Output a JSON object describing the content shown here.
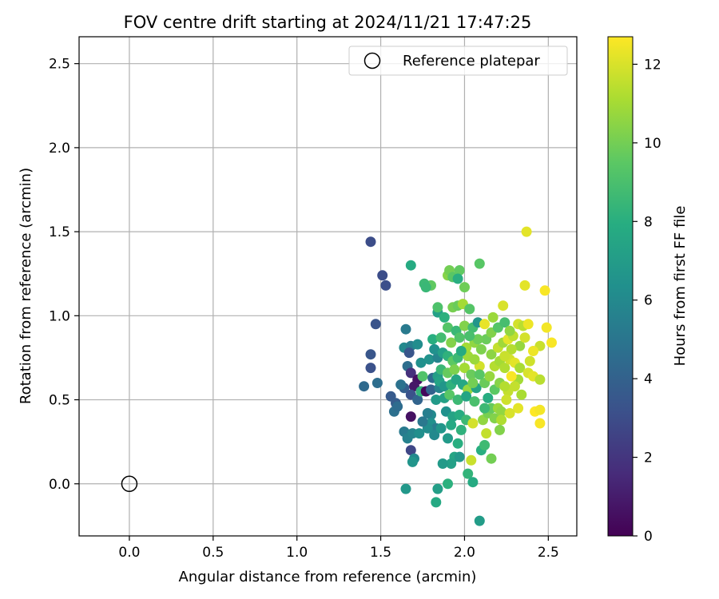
{
  "chart_data": {
    "type": "scatter",
    "title": "FOV centre drift starting at 2024/11/21 17:47:25",
    "xlabel": "Angular distance from reference (arcmin)",
    "ylabel": "Rotation from reference (arcmin)",
    "xlim": [
      -0.3,
      2.67
    ],
    "ylim": [
      -0.31,
      2.66
    ],
    "xticks": [
      "0.0",
      "0.5",
      "1.0",
      "1.5",
      "2.0",
      "2.5"
    ],
    "yticks": [
      "0.0",
      "0.5",
      "1.0",
      "1.5",
      "2.0",
      "2.5"
    ],
    "grid": true,
    "legend": {
      "placement": "upper right",
      "entries": [
        "Reference platepar"
      ]
    },
    "reference_point": {
      "x": 0.0,
      "y": 0.0,
      "marker": "open-circle"
    },
    "colorbar": {
      "label": "Hours from first FF file",
      "range": [
        0,
        12.7
      ],
      "ticks": [
        "0",
        "2",
        "4",
        "6",
        "8",
        "10",
        "12"
      ],
      "colormap": "viridis"
    },
    "points": [
      [
        1.44,
        1.44,
        3.0
      ],
      [
        1.51,
        1.24,
        3.0
      ],
      [
        1.53,
        1.18,
        3.1
      ],
      [
        1.47,
        0.95,
        3.3
      ],
      [
        1.44,
        0.77,
        3.4
      ],
      [
        1.44,
        0.69,
        3.2
      ],
      [
        1.4,
        0.58,
        4.4
      ],
      [
        1.48,
        0.6,
        4.6
      ],
      [
        1.56,
        0.52,
        3.6
      ],
      [
        1.59,
        0.48,
        3.7
      ],
      [
        1.58,
        0.43,
        4.7
      ],
      [
        1.6,
        0.46,
        4.5
      ],
      [
        1.65,
        0.92,
        5.2
      ],
      [
        1.64,
        0.81,
        6.0
      ],
      [
        1.68,
        0.82,
        5.5
      ],
      [
        1.72,
        0.83,
        6.2
      ],
      [
        1.67,
        0.78,
        3.4
      ],
      [
        1.66,
        0.7,
        4.6
      ],
      [
        1.68,
        0.66,
        1.8
      ],
      [
        1.72,
        0.62,
        0.6
      ],
      [
        1.7,
        0.58,
        0.8
      ],
      [
        1.64,
        0.57,
        3.8
      ],
      [
        1.62,
        0.59,
        4.8
      ],
      [
        1.68,
        0.53,
        3.2
      ],
      [
        1.72,
        0.5,
        4.1
      ],
      [
        1.68,
        0.4,
        0.6
      ],
      [
        1.64,
        0.31,
        5.2
      ],
      [
        1.66,
        0.27,
        5.6
      ],
      [
        1.69,
        0.3,
        5.8
      ],
      [
        1.73,
        0.3,
        6.3
      ],
      [
        1.68,
        0.2,
        2.7
      ],
      [
        1.7,
        0.15,
        6.0
      ],
      [
        1.69,
        0.13,
        6.6
      ],
      [
        1.65,
        -0.03,
        6.8
      ],
      [
        1.74,
        0.55,
        8.3
      ],
      [
        1.75,
        0.64,
        9.2
      ],
      [
        1.74,
        0.72,
        6.4
      ],
      [
        1.79,
        0.74,
        6.5
      ],
      [
        1.81,
        0.63,
        4.5
      ],
      [
        1.77,
        0.55,
        0.3
      ],
      [
        1.8,
        0.56,
        4.0
      ],
      [
        1.83,
        0.5,
        6.9
      ],
      [
        1.8,
        0.41,
        6.0
      ],
      [
        1.8,
        0.36,
        6.4
      ],
      [
        1.83,
        0.33,
        5.4
      ],
      [
        1.82,
        0.29,
        6.0
      ],
      [
        1.86,
        0.33,
        6.7
      ],
      [
        1.85,
        0.57,
        5.7
      ],
      [
        1.84,
        0.64,
        7.1
      ],
      [
        1.84,
        0.75,
        5.8
      ],
      [
        1.82,
        0.8,
        6.4
      ],
      [
        1.81,
        0.86,
        8.0
      ],
      [
        1.84,
        1.02,
        7.2
      ],
      [
        1.84,
        1.05,
        9.1
      ],
      [
        1.8,
        1.18,
        9.6
      ],
      [
        1.76,
        1.19,
        8.6
      ],
      [
        1.77,
        1.17,
        8.5
      ],
      [
        1.68,
        1.3,
        7.8
      ],
      [
        1.9,
        1.24,
        10.4
      ],
      [
        1.91,
        1.27,
        10.0
      ],
      [
        1.93,
        1.23,
        9.4
      ],
      [
        1.97,
        1.27,
        9.6
      ],
      [
        1.96,
        1.22,
        8.0
      ],
      [
        2.0,
        1.17,
        9.9
      ],
      [
        2.09,
        1.31,
        9.4
      ],
      [
        1.93,
        1.05,
        10.1
      ],
      [
        1.96,
        1.06,
        9.8
      ],
      [
        1.99,
        1.07,
        11.0
      ],
      [
        2.03,
        1.04,
        9.3
      ],
      [
        1.88,
        0.99,
        8.1
      ],
      [
        1.9,
        0.93,
        9.3
      ],
      [
        1.95,
        0.91,
        8.5
      ],
      [
        2.0,
        0.94,
        10.3
      ],
      [
        2.05,
        0.93,
        8.8
      ],
      [
        2.08,
        0.96,
        6.6
      ],
      [
        1.86,
        0.87,
        8.8
      ],
      [
        1.92,
        0.84,
        10.3
      ],
      [
        1.97,
        0.87,
        9.2
      ],
      [
        2.01,
        0.81,
        11.0
      ],
      [
        2.06,
        0.84,
        10.6
      ],
      [
        1.87,
        0.78,
        7.2
      ],
      [
        1.9,
        0.76,
        8.2
      ],
      [
        1.93,
        0.73,
        9.5
      ],
      [
        1.96,
        0.75,
        8.6
      ],
      [
        2.02,
        0.76,
        10.9
      ],
      [
        1.86,
        0.68,
        8.5
      ],
      [
        1.9,
        0.66,
        9.7
      ],
      [
        1.94,
        0.68,
        10.2
      ],
      [
        2.0,
        0.69,
        11.0
      ],
      [
        2.04,
        0.65,
        9.8
      ],
      [
        1.85,
        0.61,
        7.4
      ],
      [
        1.88,
        0.58,
        6.7
      ],
      [
        1.92,
        0.59,
        8.2
      ],
      [
        1.95,
        0.62,
        7.5
      ],
      [
        1.99,
        0.59,
        7.6
      ],
      [
        2.02,
        0.56,
        10.7
      ],
      [
        2.07,
        0.57,
        7.4
      ],
      [
        1.88,
        0.51,
        7.3
      ],
      [
        1.91,
        0.53,
        9.4
      ],
      [
        1.96,
        0.5,
        8.6
      ],
      [
        2.01,
        0.52,
        7.5
      ],
      [
        2.06,
        0.49,
        9.0
      ],
      [
        1.89,
        0.43,
        6.4
      ],
      [
        1.93,
        0.4,
        7.4
      ],
      [
        1.97,
        0.41,
        7.9
      ],
      [
        2.01,
        0.38,
        8.6
      ],
      [
        2.05,
        0.36,
        11.9
      ],
      [
        1.92,
        0.35,
        7.7
      ],
      [
        1.98,
        0.32,
        8.2
      ],
      [
        1.9,
        0.27,
        6.9
      ],
      [
        1.96,
        0.24,
        8.0
      ],
      [
        1.94,
        0.16,
        7.5
      ],
      [
        1.97,
        0.16,
        6.8
      ],
      [
        1.92,
        0.12,
        7.2
      ],
      [
        1.87,
        0.12,
        6.9
      ],
      [
        2.02,
        0.06,
        8.3
      ],
      [
        2.04,
        0.14,
        11.7
      ],
      [
        1.9,
        0.0,
        8.1
      ],
      [
        1.84,
        -0.03,
        7.1
      ],
      [
        1.83,
        -0.11,
        7.7
      ],
      [
        2.05,
        0.01,
        7.8
      ],
      [
        2.09,
        -0.22,
        7.0
      ],
      [
        2.13,
        0.3,
        11.6
      ],
      [
        2.16,
        0.15,
        10.0
      ],
      [
        2.1,
        0.2,
        8.0
      ],
      [
        2.12,
        0.23,
        8.7
      ],
      [
        2.11,
        0.38,
        10.6
      ],
      [
        2.14,
        0.42,
        10.1
      ],
      [
        2.18,
        0.39,
        10.3
      ],
      [
        2.16,
        0.45,
        9.7
      ],
      [
        2.2,
        0.45,
        10.8
      ],
      [
        2.22,
        0.43,
        10.6
      ],
      [
        2.14,
        0.51,
        7.9
      ],
      [
        2.18,
        0.56,
        9.5
      ],
      [
        2.21,
        0.6,
        10.4
      ],
      [
        2.12,
        0.6,
        9.8
      ],
      [
        2.15,
        0.64,
        10.7
      ],
      [
        2.18,
        0.7,
        11.3
      ],
      [
        2.21,
        0.73,
        11.0
      ],
      [
        2.24,
        0.69,
        11.2
      ],
      [
        2.27,
        0.74,
        11.9
      ],
      [
        2.3,
        0.72,
        12.2
      ],
      [
        2.33,
        0.69,
        11.1
      ],
      [
        2.16,
        0.77,
        10.5
      ],
      [
        2.2,
        0.81,
        11.6
      ],
      [
        2.23,
        0.84,
        10.9
      ],
      [
        2.26,
        0.86,
        12.2
      ],
      [
        2.29,
        0.88,
        11.5
      ],
      [
        2.33,
        0.82,
        10.7
      ],
      [
        2.36,
        0.87,
        11.9
      ],
      [
        2.13,
        0.86,
        9.8
      ],
      [
        2.16,
        0.9,
        10.3
      ],
      [
        2.2,
        0.93,
        9.3
      ],
      [
        2.24,
        0.96,
        8.9
      ],
      [
        2.27,
        0.91,
        10.6
      ],
      [
        2.32,
        0.95,
        11.9
      ],
      [
        2.35,
        0.94,
        11.4
      ],
      [
        2.38,
        0.95,
        12.4
      ],
      [
        2.12,
        0.95,
        12.3
      ],
      [
        2.17,
        0.99,
        10.8
      ],
      [
        2.23,
        1.06,
        12.0
      ],
      [
        2.36,
        1.18,
        12.2
      ],
      [
        2.37,
        1.5,
        12.2
      ],
      [
        2.48,
        1.15,
        12.6
      ],
      [
        2.49,
        0.93,
        12.5
      ],
      [
        2.52,
        0.84,
        12.6
      ],
      [
        2.45,
        0.82,
        11.7
      ],
      [
        2.41,
        0.79,
        12.4
      ],
      [
        2.39,
        0.73,
        11.8
      ],
      [
        2.38,
        0.66,
        12.0
      ],
      [
        2.41,
        0.64,
        12.2
      ],
      [
        2.45,
        0.62,
        11.4
      ],
      [
        2.32,
        0.62,
        11.0
      ],
      [
        2.3,
        0.58,
        11.6
      ],
      [
        2.34,
        0.53,
        11.1
      ],
      [
        2.26,
        0.55,
        11.6
      ],
      [
        2.24,
        0.58,
        11.3
      ],
      [
        2.28,
        0.64,
        12.6
      ],
      [
        2.25,
        0.5,
        11.8
      ],
      [
        2.32,
        0.45,
        12.2
      ],
      [
        2.27,
        0.42,
        12.0
      ],
      [
        2.22,
        0.38,
        11.2
      ],
      [
        2.21,
        0.32,
        10.3
      ],
      [
        2.42,
        0.43,
        12.7
      ],
      [
        2.45,
        0.44,
        12.5
      ],
      [
        2.45,
        0.36,
        12.6
      ],
      [
        2.28,
        0.8,
        11.3
      ],
      [
        2.24,
        0.76,
        11.7
      ],
      [
        2.09,
        0.7,
        11.9
      ],
      [
        2.06,
        0.74,
        10.8
      ],
      [
        2.1,
        0.8,
        10.2
      ],
      [
        2.08,
        0.86,
        9.9
      ],
      [
        2.03,
        0.88,
        9.0
      ],
      [
        2.09,
        0.65,
        9.4
      ],
      [
        2.05,
        0.6,
        10.0
      ],
      [
        1.98,
        0.79,
        7.8
      ],
      [
        2.12,
        0.45,
        8.6
      ],
      [
        1.78,
        0.42,
        5.5
      ],
      [
        1.78,
        0.33,
        6.2
      ],
      [
        1.75,
        0.37,
        5.1
      ]
    ]
  }
}
